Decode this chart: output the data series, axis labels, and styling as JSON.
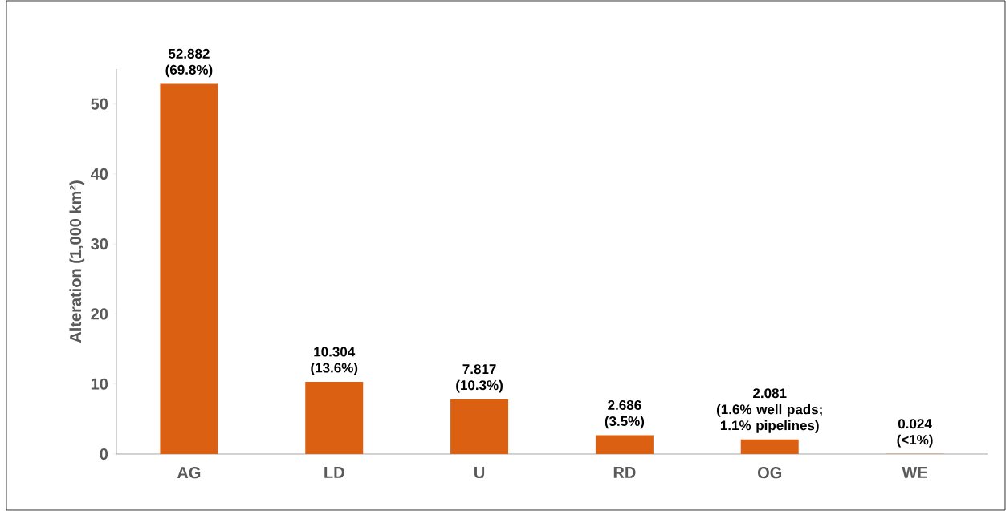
{
  "chart_data": {
    "type": "bar",
    "ylabel": "Alteration (1,000 km²)",
    "categories": [
      "AG",
      "LD",
      "U",
      "RD",
      "OG",
      "WE"
    ],
    "values": [
      52.882,
      10.304,
      7.817,
      2.686,
      2.081,
      0.024
    ],
    "value_labels": [
      "52.882",
      "10.304",
      "7.817",
      "2.686",
      "2.081",
      "0.024"
    ],
    "annotations": [
      {
        "text": "(69.8%)",
        "x": "AG",
        "y": 52.882
      },
      {
        "text": "(13.6%)",
        "x": "LD",
        "y": 10.304
      },
      {
        "text": "(10.3%)",
        "x": "U",
        "y": 7.817
      },
      {
        "text": "(3.5%)",
        "x": "RD",
        "y": 2.686
      },
      {
        "text": "(1.6% well pads; 1.1% pipelines)",
        "x": "OG",
        "y": 2.081
      },
      {
        "text": "(<1%)",
        "x": "WE",
        "y": 0.024
      }
    ],
    "color": "#dc6012",
    "ylim": [
      0,
      55
    ],
    "yticks": [
      0,
      10,
      20,
      30,
      40,
      50
    ],
    "grid": false
  }
}
